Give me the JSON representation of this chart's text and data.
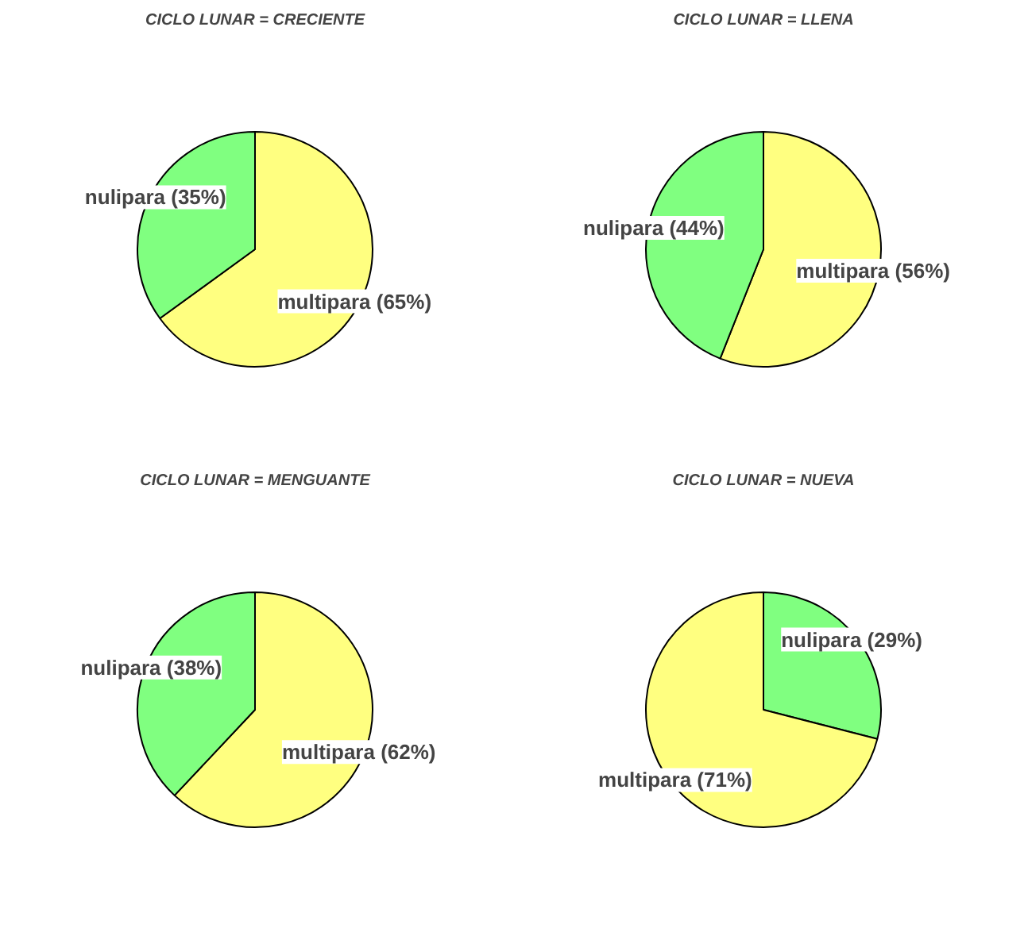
{
  "chart_data": [
    {
      "type": "pie",
      "title": "CICLO LUNAR = CRECIENTE",
      "categories": [
        "multipara (65%)",
        "nulipara (35%)"
      ],
      "values": [
        65,
        35
      ],
      "colors": [
        "#ffff80",
        "#80ff80"
      ]
    },
    {
      "type": "pie",
      "title": "CICLO LUNAR = LLENA",
      "categories": [
        "multipara (56%)",
        "nulipara (44%)"
      ],
      "values": [
        56,
        44
      ],
      "colors": [
        "#ffff80",
        "#80ff80"
      ]
    },
    {
      "type": "pie",
      "title": "CICLO LUNAR = MENGUANTE",
      "categories": [
        "multipara (62%)",
        "nulipara (38%)"
      ],
      "values": [
        62,
        38
      ],
      "colors": [
        "#ffff80",
        "#80ff80"
      ]
    },
    {
      "type": "pie",
      "title": "CICLO LUNAR = NUEVA",
      "categories": [
        "nulipara (29%)",
        "multipara (71%)"
      ],
      "values": [
        29,
        71
      ],
      "colors": [
        "#80ff80",
        "#ffff80"
      ]
    }
  ]
}
